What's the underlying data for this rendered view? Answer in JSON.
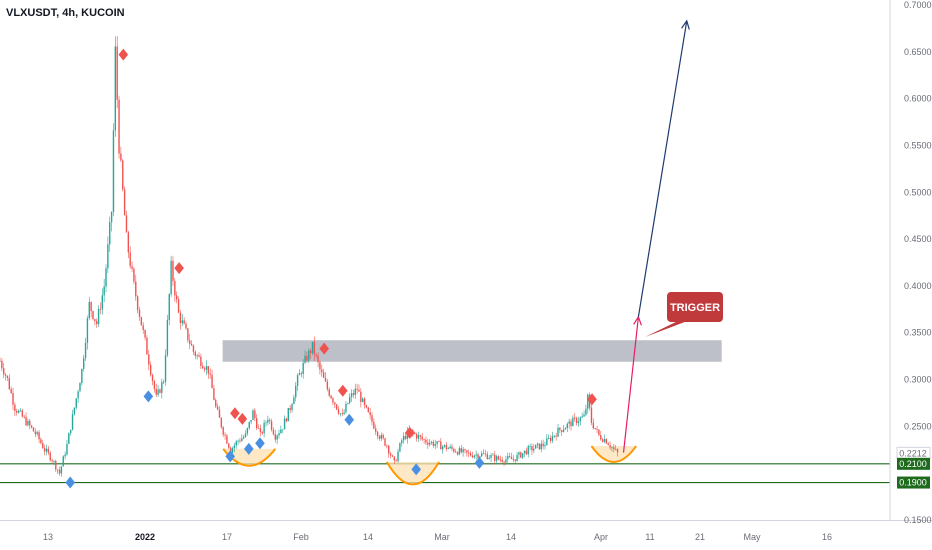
{
  "header": {
    "symbol_title": "VLXUSDT, 4h, KUCOIN"
  },
  "colors": {
    "up_candle": "#26a69a",
    "down_candle": "#ef5350",
    "peak_marker": "#ef5350",
    "trough_marker": "#4a90e2",
    "resistance_zone": "#b2b5be",
    "support_line": "#1e6b1e",
    "bowl": "#ff9800",
    "bowl_fill": "#ffe0b2",
    "target_arrow": "#1e3a6e",
    "trigger_arrow": "#e91e63",
    "trigger_box": "#c0393b",
    "price_tag": "#1e6b1e"
  },
  "chart_data": {
    "type": "candlestick",
    "timeframe": "4h",
    "exchange": "KUCOIN",
    "symbol": "VLXUSDT",
    "ylim": [
      0.15,
      0.7
    ],
    "y_ticks": [
      "0.7000",
      "0.6500",
      "0.6000",
      "0.5500",
      "0.5000",
      "0.4500",
      "0.4000",
      "0.3500",
      "0.3000",
      "0.2500",
      "0.2212",
      "0.2100",
      "0.1900",
      "0.1500"
    ],
    "x_ticks": [
      {
        "label": "13",
        "bold": false
      },
      {
        "label": "2022",
        "bold": true
      },
      {
        "label": "17",
        "bold": false
      },
      {
        "label": "Feb",
        "bold": false
      },
      {
        "label": "14",
        "bold": false
      },
      {
        "label": "Mar",
        "bold": false
      },
      {
        "label": "14",
        "bold": false
      },
      {
        "label": "Apr",
        "bold": false
      },
      {
        "label": "11",
        "bold": false
      },
      {
        "label": "21",
        "bold": false
      },
      {
        "label": "May",
        "bold": false
      },
      {
        "label": "16",
        "bold": false
      }
    ],
    "price_path": [
      [
        0,
        0.32
      ],
      [
        2,
        0.3
      ],
      [
        4,
        0.27
      ],
      [
        6,
        0.26
      ],
      [
        8,
        0.25
      ],
      [
        10,
        0.24
      ],
      [
        12,
        0.225
      ],
      [
        14,
        0.215
      ],
      [
        16,
        0.2
      ],
      [
        18,
        0.23
      ],
      [
        20,
        0.27
      ],
      [
        22,
        0.31
      ],
      [
        24,
        0.38
      ],
      [
        26,
        0.36
      ],
      [
        28,
        0.4
      ],
      [
        30,
        0.48
      ],
      [
        31,
        0.65
      ],
      [
        32,
        0.55
      ],
      [
        34,
        0.45
      ],
      [
        36,
        0.4
      ],
      [
        38,
        0.36
      ],
      [
        40,
        0.32
      ],
      [
        42,
        0.28
      ],
      [
        44,
        0.3
      ],
      [
        46,
        0.42
      ],
      [
        48,
        0.37
      ],
      [
        50,
        0.35
      ],
      [
        52,
        0.33
      ],
      [
        54,
        0.32
      ],
      [
        56,
        0.31
      ],
      [
        58,
        0.27
      ],
      [
        60,
        0.245
      ],
      [
        62,
        0.225
      ],
      [
        64,
        0.235
      ],
      [
        66,
        0.24
      ],
      [
        68,
        0.265
      ],
      [
        70,
        0.24
      ],
      [
        72,
        0.26
      ],
      [
        74,
        0.24
      ],
      [
        76,
        0.25
      ],
      [
        78,
        0.27
      ],
      [
        80,
        0.3
      ],
      [
        82,
        0.32
      ],
      [
        84,
        0.335
      ],
      [
        86,
        0.31
      ],
      [
        88,
        0.29
      ],
      [
        90,
        0.275
      ],
      [
        92,
        0.26
      ],
      [
        94,
        0.28
      ],
      [
        96,
        0.29
      ],
      [
        98,
        0.27
      ],
      [
        100,
        0.255
      ],
      [
        102,
        0.24
      ],
      [
        104,
        0.23
      ],
      [
        106,
        0.21
      ],
      [
        108,
        0.235
      ],
      [
        110,
        0.245
      ],
      [
        114,
        0.235
      ],
      [
        118,
        0.23
      ],
      [
        122,
        0.225
      ],
      [
        126,
        0.22
      ],
      [
        130,
        0.22
      ],
      [
        134,
        0.215
      ],
      [
        138,
        0.215
      ],
      [
        142,
        0.225
      ],
      [
        146,
        0.23
      ],
      [
        150,
        0.245
      ],
      [
        154,
        0.255
      ],
      [
        157,
        0.26
      ],
      [
        158,
        0.28
      ],
      [
        159,
        0.255
      ],
      [
        161,
        0.24
      ],
      [
        163,
        0.235
      ],
      [
        165,
        0.225
      ],
      [
        166,
        0.2212
      ]
    ],
    "peak_markers": [
      [
        31,
        0.647
      ],
      [
        46,
        0.419
      ],
      [
        61,
        0.264
      ],
      [
        63,
        0.258
      ],
      [
        85,
        0.333
      ],
      [
        90,
        0.288
      ],
      [
        108,
        0.243
      ],
      [
        157,
        0.279
      ]
    ],
    "trough_markers": [
      [
        17,
        0.19
      ],
      [
        38,
        0.282
      ],
      [
        60,
        0.218
      ],
      [
        65,
        0.226
      ],
      [
        68,
        0.232
      ],
      [
        92,
        0.257
      ],
      [
        110,
        0.204
      ],
      [
        127,
        0.211
      ]
    ],
    "resistance_zone": {
      "from_bar": 55,
      "to_bar": 194,
      "low": 0.319,
      "high": 0.342
    },
    "support_lines": [
      0.21,
      0.19
    ],
    "bowls": [
      {
        "from_bar": 60,
        "to_bar": 74,
        "top": 0.226,
        "bottom": 0.208
      },
      {
        "from_bar": 104,
        "to_bar": 118,
        "top": 0.212,
        "bottom": 0.188
      },
      {
        "from_bar": 159,
        "to_bar": 171,
        "top": 0.229,
        "bottom": 0.212
      }
    ],
    "trigger_arrow": {
      "from": [
        166,
        0.222
      ],
      "to": [
        170,
        0.367
      ]
    },
    "target_arrow": {
      "from": [
        170,
        0.367
      ],
      "to": [
        183,
        0.683
      ]
    },
    "trigger_label": "TRIGGER",
    "last_price": "0.2212"
  }
}
